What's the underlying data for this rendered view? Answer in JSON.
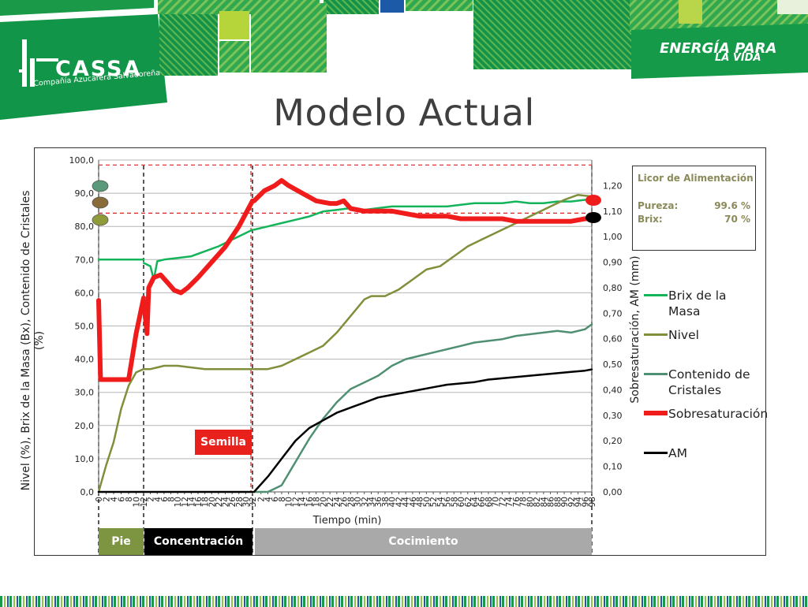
{
  "slide": {
    "title": "Modelo Actual",
    "logo_name": "CASSA",
    "logo_subtitle": "Compañía Azucarera Salvadoreña",
    "tagline_line1": "ENERGÍA PARA",
    "tagline_line2": "LA VIDA"
  },
  "colors": {
    "brand_green": "#179a48",
    "brix": "#13b45a",
    "nivel": "#7f8f3a",
    "cristales": "#4f8f72",
    "sobresat": "#f01c1c",
    "am": "#000000",
    "phase_pie": "#7d9441",
    "phase_concentracion": "#000000",
    "phase_cocimiento": "#a9a9a9"
  },
  "info_box": {
    "title": "Licor de Alimentación",
    "pureza_label": "Pureza:",
    "pureza_value": "99.6 %",
    "brix_label": "Brix:",
    "brix_value": "70 %"
  },
  "phases": {
    "pie": "Pie",
    "concentracion": "Concentración",
    "cocimiento": "Cocimiento"
  },
  "semilla_label": "Semilla",
  "chart_data": {
    "type": "line",
    "xlabel": "Tiempo (min)",
    "ylabel_left": "Nivel (%), Brix de la Masa (Bx), Contenido de Cristales (%)",
    "ylabel_right": "Sobresaturación, AM (mm)",
    "ylim_left": [
      0,
      100
    ],
    "ylim_right": [
      0,
      1.3
    ],
    "y_ticks_left": [
      "0,0",
      "10,0",
      "20,0",
      "30,0",
      "40,0",
      "50,0",
      "60,0",
      "70,0",
      "80,0",
      "90,0",
      "100,0"
    ],
    "y_ticks_right": [
      "0,00",
      "0,10",
      "0,20",
      "0,30",
      "0,40",
      "0,50",
      "0,60",
      "0,70",
      "0,80",
      "0,90",
      "1,00",
      "1,10",
      "1,20"
    ],
    "segments": {
      "pie": {
        "start": 0,
        "end": 12
      },
      "concentracion": {
        "start": 0,
        "end": 32
      },
      "cocimiento": {
        "start": 0,
        "end": 98
      }
    },
    "x_ticks": {
      "pie": [
        "0",
        "2",
        "4",
        "6",
        "8",
        "10",
        "12"
      ],
      "concentracion": [
        "2",
        "4",
        "6",
        "8",
        "10",
        "12",
        "14",
        "16",
        "18",
        "20",
        "22",
        "24",
        "26",
        "28",
        "30",
        "32"
      ],
      "cocimiento": [
        "2",
        "4",
        "6",
        "8",
        "10",
        "12",
        "14",
        "16",
        "18",
        "20",
        "22",
        "24",
        "26",
        "28",
        "30",
        "32",
        "34",
        "36",
        "38",
        "40",
        "42",
        "44",
        "46",
        "48",
        "50",
        "52",
        "54",
        "56",
        "58",
        "60",
        "62",
        "64",
        "66",
        "68",
        "70",
        "72",
        "74",
        "76",
        "78",
        "80",
        "82",
        "84",
        "86",
        "88",
        "90",
        "92",
        "94",
        "96",
        "98"
      ]
    },
    "series": [
      {
        "name": "Brix de la Masa",
        "axis": "left",
        "pie": [
          [
            0,
            70
          ],
          [
            4,
            70
          ],
          [
            8,
            70
          ],
          [
            12,
            70
          ]
        ],
        "concentracion": [
          [
            0,
            69
          ],
          [
            2,
            68
          ],
          [
            3,
            64
          ],
          [
            4,
            69.5
          ],
          [
            6,
            70
          ],
          [
            10,
            70.5
          ],
          [
            14,
            71
          ],
          [
            18,
            72.5
          ],
          [
            22,
            74
          ],
          [
            26,
            76
          ],
          [
            30,
            78
          ],
          [
            32,
            79
          ]
        ],
        "cocimiento": [
          [
            0,
            79
          ],
          [
            4,
            80
          ],
          [
            8,
            81
          ],
          [
            12,
            82
          ],
          [
            16,
            83
          ],
          [
            20,
            84.5
          ],
          [
            24,
            85
          ],
          [
            28,
            85.5
          ],
          [
            32,
            85
          ],
          [
            36,
            85.5
          ],
          [
            40,
            86
          ],
          [
            44,
            86
          ],
          [
            48,
            86
          ],
          [
            52,
            86
          ],
          [
            56,
            86
          ],
          [
            60,
            86.5
          ],
          [
            64,
            87
          ],
          [
            68,
            87
          ],
          [
            72,
            87
          ],
          [
            76,
            87.5
          ],
          [
            80,
            87
          ],
          [
            84,
            87
          ],
          [
            88,
            87.5
          ],
          [
            92,
            87.5
          ],
          [
            96,
            88
          ],
          [
            98,
            88
          ]
        ]
      },
      {
        "name": "Nivel",
        "axis": "left",
        "pie": [
          [
            0,
            0
          ],
          [
            2,
            8
          ],
          [
            4,
            15
          ],
          [
            6,
            25
          ],
          [
            8,
            32
          ],
          [
            10,
            36
          ],
          [
            12,
            37
          ]
        ],
        "concentracion": [
          [
            0,
            37
          ],
          [
            2,
            37
          ],
          [
            4,
            37.5
          ],
          [
            6,
            38
          ],
          [
            10,
            38
          ],
          [
            14,
            37.5
          ],
          [
            18,
            37
          ],
          [
            22,
            37
          ],
          [
            26,
            37
          ],
          [
            30,
            37
          ],
          [
            32,
            37
          ]
        ],
        "cocimiento": [
          [
            0,
            37
          ],
          [
            4,
            37
          ],
          [
            8,
            38
          ],
          [
            12,
            40
          ],
          [
            16,
            42
          ],
          [
            20,
            44
          ],
          [
            24,
            48
          ],
          [
            28,
            53
          ],
          [
            32,
            58
          ],
          [
            34,
            59
          ],
          [
            38,
            59
          ],
          [
            42,
            61
          ],
          [
            46,
            64
          ],
          [
            50,
            67
          ],
          [
            54,
            68
          ],
          [
            58,
            71
          ],
          [
            62,
            74
          ],
          [
            66,
            76
          ],
          [
            70,
            78
          ],
          [
            74,
            80
          ],
          [
            78,
            82
          ],
          [
            82,
            84
          ],
          [
            86,
            86
          ],
          [
            90,
            88
          ],
          [
            94,
            89.5
          ],
          [
            98,
            89
          ]
        ]
      },
      {
        "name": "Contenido de Cristales",
        "axis": "left",
        "pie": [],
        "concentracion": [],
        "cocimiento": [
          [
            0,
            0
          ],
          [
            4,
            0
          ],
          [
            8,
            2
          ],
          [
            12,
            9
          ],
          [
            16,
            16
          ],
          [
            20,
            22
          ],
          [
            24,
            27
          ],
          [
            28,
            31
          ],
          [
            32,
            33
          ],
          [
            36,
            35
          ],
          [
            40,
            38
          ],
          [
            44,
            40
          ],
          [
            48,
            41
          ],
          [
            52,
            42
          ],
          [
            56,
            43
          ],
          [
            60,
            44
          ],
          [
            64,
            45
          ],
          [
            68,
            45.5
          ],
          [
            72,
            46
          ],
          [
            76,
            47
          ],
          [
            80,
            47.5
          ],
          [
            84,
            48
          ],
          [
            88,
            48.5
          ],
          [
            92,
            48
          ],
          [
            96,
            49
          ],
          [
            98,
            50.5
          ]
        ]
      },
      {
        "name": "Sobresaturación",
        "axis": "right",
        "pie": [
          [
            0,
            0.75
          ],
          [
            0.5,
            0.44
          ],
          [
            2,
            0.44
          ],
          [
            4,
            0.44
          ],
          [
            6,
            0.44
          ],
          [
            8,
            0.44
          ],
          [
            10,
            0.62
          ],
          [
            12,
            0.76
          ]
        ],
        "concentracion": [
          [
            0,
            0.75
          ],
          [
            1,
            0.62
          ],
          [
            1.5,
            0.8
          ],
          [
            3,
            0.84
          ],
          [
            5,
            0.85
          ],
          [
            7,
            0.82
          ],
          [
            9,
            0.79
          ],
          [
            11,
            0.78
          ],
          [
            13,
            0.8
          ],
          [
            16,
            0.84
          ],
          [
            20,
            0.9
          ],
          [
            24,
            0.96
          ],
          [
            28,
            1.04
          ],
          [
            32,
            1.14
          ]
        ],
        "cocimiento": [
          [
            0,
            1.14
          ],
          [
            3,
            1.18
          ],
          [
            6,
            1.2
          ],
          [
            8,
            1.22
          ],
          [
            10,
            1.2
          ],
          [
            14,
            1.17
          ],
          [
            18,
            1.14
          ],
          [
            22,
            1.13
          ],
          [
            24,
            1.13
          ],
          [
            26,
            1.14
          ],
          [
            28,
            1.11
          ],
          [
            32,
            1.1
          ],
          [
            36,
            1.1
          ],
          [
            40,
            1.1
          ],
          [
            44,
            1.09
          ],
          [
            48,
            1.08
          ],
          [
            52,
            1.08
          ],
          [
            56,
            1.08
          ],
          [
            60,
            1.07
          ],
          [
            64,
            1.07
          ],
          [
            68,
            1.07
          ],
          [
            72,
            1.07
          ],
          [
            76,
            1.06
          ],
          [
            80,
            1.06
          ],
          [
            84,
            1.06
          ],
          [
            88,
            1.06
          ],
          [
            92,
            1.06
          ],
          [
            96,
            1.07
          ],
          [
            98,
            1.07
          ]
        ]
      },
      {
        "name": "AM",
        "axis": "right",
        "pie": [
          [
            0,
            0
          ],
          [
            12,
            0
          ]
        ],
        "concentracion": [
          [
            0,
            0
          ],
          [
            32,
            0
          ]
        ],
        "cocimiento": [
          [
            0,
            0
          ],
          [
            4,
            0.06
          ],
          [
            8,
            0.13
          ],
          [
            12,
            0.2
          ],
          [
            16,
            0.25
          ],
          [
            20,
            0.28
          ],
          [
            24,
            0.31
          ],
          [
            28,
            0.33
          ],
          [
            32,
            0.35
          ],
          [
            36,
            0.37
          ],
          [
            40,
            0.38
          ],
          [
            44,
            0.39
          ],
          [
            48,
            0.4
          ],
          [
            52,
            0.41
          ],
          [
            56,
            0.42
          ],
          [
            60,
            0.425
          ],
          [
            64,
            0.43
          ],
          [
            68,
            0.44
          ],
          [
            72,
            0.445
          ],
          [
            76,
            0.45
          ],
          [
            80,
            0.455
          ],
          [
            84,
            0.46
          ],
          [
            88,
            0.465
          ],
          [
            92,
            0.47
          ],
          [
            96,
            0.475
          ],
          [
            98,
            0.48
          ]
        ]
      }
    ],
    "reference_lines_left": [
      98.5,
      84
    ]
  }
}
